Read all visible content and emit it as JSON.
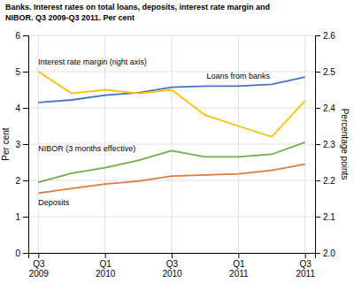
{
  "chart_data": {
    "type": "line",
    "title": [
      "Banks. Interest rates on total loans, deposits, interest rate margin and",
      "NIBOR. Q3 2009-Q3 2011. Per cent"
    ],
    "categories": [
      "Q3\n2009",
      null,
      "Q1\n2010",
      null,
      "Q3\n2010",
      null,
      "Q1\n2011",
      null,
      "Q3\n2011"
    ],
    "series": [
      {
        "name": "Loans from banks",
        "color": "#4472c4",
        "values": [
          4.15,
          4.22,
          4.35,
          4.42,
          4.57,
          4.6,
          4.6,
          4.65,
          4.85
        ]
      },
      {
        "name": "Deposits",
        "color": "#e07b39",
        "values": [
          1.65,
          1.78,
          1.9,
          1.98,
          2.12,
          2.15,
          2.18,
          2.28,
          2.45
        ]
      },
      {
        "name": "NIBOR (3 months effective)",
        "color": "#70ad47",
        "values": [
          1.95,
          2.2,
          2.35,
          2.55,
          2.82,
          2.65,
          2.65,
          2.72,
          3.05
        ]
      },
      {
        "name": "Interest rate margin (right axis)",
        "color": "#ffc000",
        "axis": "y2",
        "values": [
          2.5,
          2.44,
          2.45,
          2.44,
          2.45,
          2.38,
          2.35,
          2.32,
          2.42
        ]
      }
    ],
    "ylabel": "Per cent",
    "y2label": "Percentage points",
    "ylim": [
      0,
      6
    ],
    "yticks": [
      0,
      1,
      2,
      3,
      4,
      5,
      6
    ],
    "y2lim": [
      2.0,
      2.6
    ],
    "y2ticks": [
      {
        "value": 2.0,
        "label": "2.0"
      },
      2.1,
      2.2,
      2.3,
      2.4,
      2.5,
      2.6
    ],
    "grid": true
  }
}
